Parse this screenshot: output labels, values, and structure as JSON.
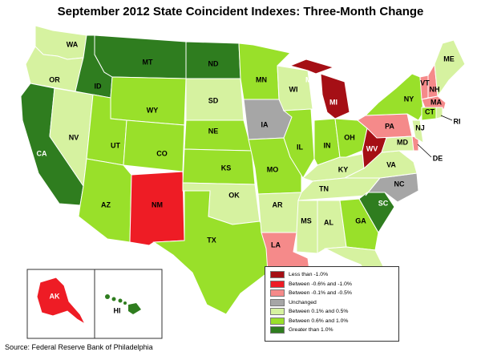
{
  "title": "September 2012 State Coincident Indexes: Three-Month Change",
  "source": "Source: Federal Reserve Bank of Philadelphia",
  "categories": [
    {
      "key": "lt1",
      "label": "Less than -1.0%",
      "color": "#a50f15"
    },
    {
      "key": "n06",
      "label": "Between -0.6% and -1.0%",
      "color": "#ee1c25"
    },
    {
      "key": "n01",
      "label": "Between -0.1% and -0.5%",
      "color": "#f58a8a"
    },
    {
      "key": "unch",
      "label": "Unchanged",
      "color": "#a6a6a6"
    },
    {
      "key": "p01",
      "label": "Between 0.1% and 0.5%",
      "color": "#d6f2a0"
    },
    {
      "key": "p06",
      "label": "Between 0.6% and 1.0%",
      "color": "#99e02a"
    },
    {
      "key": "gt1",
      "label": "Greater than 1.0%",
      "color": "#2f7d1f"
    }
  ],
  "states": {
    "WA": "p01",
    "OR": "p01",
    "CA": "gt1",
    "NV": "p01",
    "ID": "gt1",
    "MT": "gt1",
    "WY": "p06",
    "UT": "p06",
    "AZ": "p06",
    "CO": "p06",
    "NM": "n06",
    "ND": "gt1",
    "SD": "p01",
    "NE": "p06",
    "KS": "p06",
    "OK": "p01",
    "TX": "p06",
    "MN": "p06",
    "IA": "unch",
    "MO": "p06",
    "AR": "p01",
    "LA": "n01",
    "WI": "p01",
    "IL": "p06",
    "MI": "lt1",
    "IN": "p06",
    "OH": "p06",
    "KY": "p01",
    "TN": "p01",
    "MS": "p01",
    "AL": "p01",
    "GA": "p06",
    "FL": "p01",
    "SC": "gt1",
    "NC": "unch",
    "VA": "p01",
    "WV": "lt1",
    "MD": "p01",
    "DE": "n01",
    "NJ": "p01",
    "PA": "n01",
    "NY": "p06",
    "VT": "n01",
    "NH": "n01",
    "ME": "p01",
    "MA": "n01",
    "CT": "p06",
    "RI": "p01",
    "AK": "n06",
    "HI": "gt1"
  }
}
